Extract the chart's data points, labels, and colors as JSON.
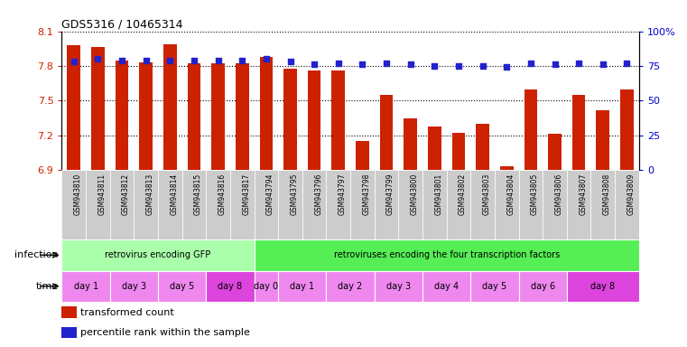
{
  "title": "GDS5316 / 10465314",
  "samples": [
    "GSM943810",
    "GSM943811",
    "GSM943812",
    "GSM943813",
    "GSM943814",
    "GSM943815",
    "GSM943816",
    "GSM943817",
    "GSM943794",
    "GSM943795",
    "GSM943796",
    "GSM943797",
    "GSM943798",
    "GSM943799",
    "GSM943800",
    "GSM943801",
    "GSM943802",
    "GSM943803",
    "GSM943804",
    "GSM943805",
    "GSM943806",
    "GSM943807",
    "GSM943808",
    "GSM943809"
  ],
  "bar_values": [
    7.98,
    7.96,
    7.85,
    7.83,
    7.99,
    7.82,
    7.82,
    7.82,
    7.88,
    7.78,
    7.76,
    7.76,
    7.15,
    7.55,
    7.35,
    7.28,
    7.22,
    7.3,
    6.93,
    7.6,
    7.21,
    7.55,
    7.42,
    7.6
  ],
  "percentile_values": [
    78,
    80,
    79,
    79,
    79,
    79,
    79,
    79,
    80,
    78,
    76,
    77,
    76,
    77,
    76,
    75,
    75,
    75,
    74,
    77,
    76,
    77,
    76,
    77
  ],
  "ylim_left": [
    6.9,
    8.1
  ],
  "ylim_right": [
    0,
    100
  ],
  "yticks_left": [
    6.9,
    7.2,
    7.5,
    7.8,
    8.1
  ],
  "ytick_labels_left": [
    "6.9",
    "7.2",
    "7.5",
    "7.8",
    "8.1"
  ],
  "yticks_right": [
    0,
    25,
    50,
    75,
    100
  ],
  "ytick_labels_right": [
    "0",
    "25",
    "50",
    "75",
    "100%"
  ],
  "bar_color": "#cc2200",
  "dot_color": "#2222cc",
  "grid_color": "#000000",
  "infection_groups": [
    {
      "label": "retrovirus encoding GFP",
      "start": 0,
      "end": 8,
      "color": "#aaffaa"
    },
    {
      "label": "retroviruses encoding the four transcription factors",
      "start": 8,
      "end": 24,
      "color": "#55ee55"
    }
  ],
  "time_groups": [
    {
      "label": "day 1",
      "start": 0,
      "end": 2,
      "color": "#ee88ee"
    },
    {
      "label": "day 3",
      "start": 2,
      "end": 4,
      "color": "#ee88ee"
    },
    {
      "label": "day 5",
      "start": 4,
      "end": 6,
      "color": "#ee88ee"
    },
    {
      "label": "day 8",
      "start": 6,
      "end": 8,
      "color": "#dd44dd"
    },
    {
      "label": "day 0",
      "start": 8,
      "end": 9,
      "color": "#ee88ee"
    },
    {
      "label": "day 1",
      "start": 9,
      "end": 11,
      "color": "#ee88ee"
    },
    {
      "label": "day 2",
      "start": 11,
      "end": 13,
      "color": "#ee88ee"
    },
    {
      "label": "day 3",
      "start": 13,
      "end": 15,
      "color": "#ee88ee"
    },
    {
      "label": "day 4",
      "start": 15,
      "end": 17,
      "color": "#ee88ee"
    },
    {
      "label": "day 5",
      "start": 17,
      "end": 19,
      "color": "#ee88ee"
    },
    {
      "label": "day 6",
      "start": 19,
      "end": 21,
      "color": "#ee88ee"
    },
    {
      "label": "day 8",
      "start": 21,
      "end": 24,
      "color": "#dd44dd"
    }
  ],
  "infection_label": "infection",
  "time_label": "time",
  "legend_bar_label": "transformed count",
  "legend_dot_label": "percentile rank within the sample",
  "bg_color": "#ffffff",
  "tick_label_color_left": "#cc2200",
  "tick_label_color_right": "#0000cc",
  "xtick_bg": "#cccccc"
}
